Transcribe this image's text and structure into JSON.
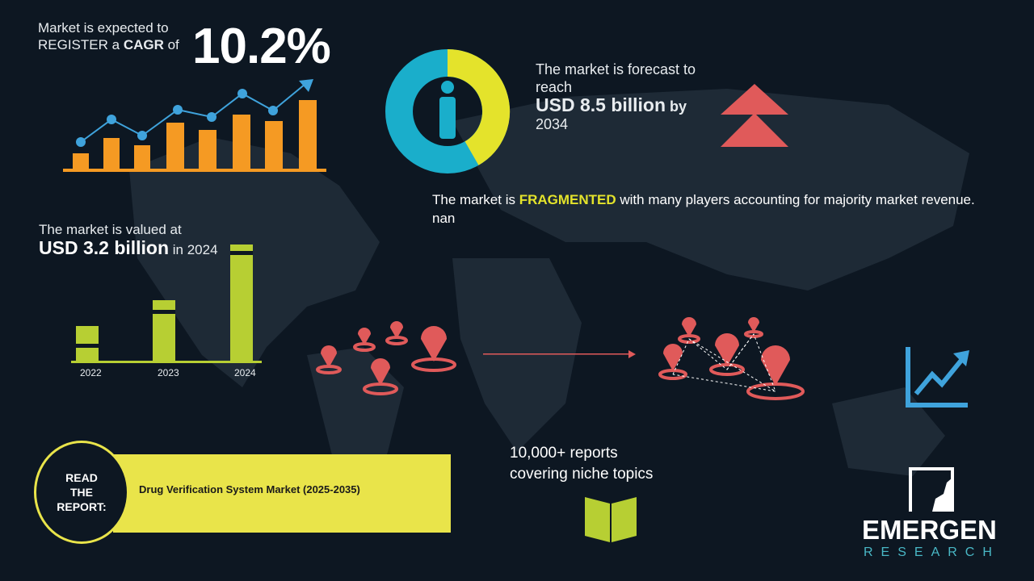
{
  "cagr": {
    "line1": "Market is expected to",
    "line2_prefix": "REGISTER a ",
    "line2_bold": "CAGR",
    "line2_suffix": " of",
    "value": "10.2%"
  },
  "forecast": {
    "line1": "The market is forecast to",
    "line2": "reach",
    "value": "USD 8.5 billion",
    "by": " by",
    "year": "2034"
  },
  "fragmented": {
    "prefix": "The market is ",
    "highlight": "FRAGMENTED",
    "suffix": " with many players accounting for majority market revenue. nan"
  },
  "valued": {
    "line1": "The market is valued at",
    "value": "USD 3.2 billion",
    "suffix": " in 2024"
  },
  "years": [
    "2022",
    "2023",
    "2024"
  ],
  "reports": {
    "line1": "10,000+ reports",
    "line2": "covering niche topics"
  },
  "read": {
    "label1": "READ",
    "label2": "THE",
    "label3": "REPORT:",
    "title": "Drug Verification System Market (2025-2035)"
  },
  "logo": {
    "name": "EMERGEN",
    "sub": "RESEARCH"
  },
  "colors": {
    "background": "#0d1722",
    "orange": "#f59a23",
    "blue": "#3fa3dc",
    "teal": "#1aaecb",
    "yellow": "#e4e32b",
    "green": "#b7cf33",
    "red": "#e05a5a"
  }
}
